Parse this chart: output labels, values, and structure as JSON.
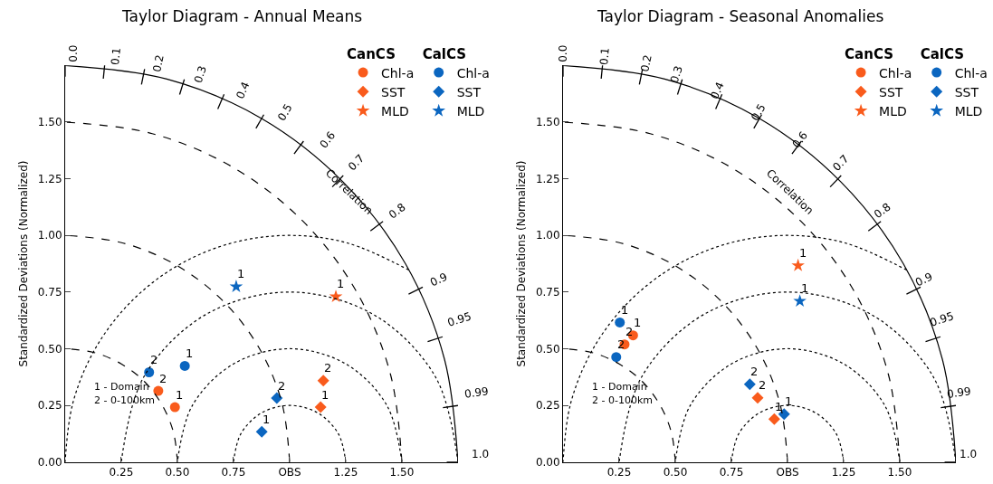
{
  "chart_data": [
    {
      "type": "scatter",
      "title": "Taylor Diagram - Annual Means",
      "ylabel": "Standardized Deviations (Normalized)",
      "legend_title": [
        "CanCS",
        "CalCS"
      ],
      "legend": "top right",
      "xlim": [
        0,
        1.75
      ],
      "ylim": [
        0,
        1.75
      ],
      "xticks": [
        {
          "value": 0.25,
          "label": "0.25"
        },
        {
          "value": 0.5,
          "label": "0.50"
        },
        {
          "value": 0.75,
          "label": "0.75"
        },
        {
          "value": 1.0,
          "label": "OBS"
        },
        {
          "value": 1.25,
          "label": "1.25"
        },
        {
          "value": 1.5,
          "label": "1.50"
        }
      ],
      "yticks": [
        {
          "value": 0,
          "label": "0.00"
        },
        {
          "value": 0.25,
          "label": "0.25"
        },
        {
          "value": 0.5,
          "label": "0.50"
        },
        {
          "value": 0.75,
          "label": "0.75"
        },
        {
          "value": 1.0,
          "label": "1.00"
        },
        {
          "value": 1.25,
          "label": "1.25"
        },
        {
          "value": 1.5,
          "label": "1.50"
        }
      ],
      "series": [
        {
          "name": "Chl-a",
          "color": "#f95b1c",
          "marker": "circle",
          "x": [
            0.489,
            0.415
          ],
          "values": [
            0.242,
            0.314
          ]
        },
        {
          "name": "SST",
          "color": "#f95b1c",
          "marker": "diamond",
          "x": [
            1.138,
            1.15
          ],
          "values": [
            0.242,
            0.359
          ]
        },
        {
          "name": "MLD",
          "color": "#f95b1c",
          "marker": "star",
          "x": [
            1.206
          ],
          "values": [
            0.73
          ]
        },
        {
          "name": "Chl-a",
          "color": "#0b66c0",
          "marker": "circle",
          "x": [
            0.533,
            0.374
          ],
          "values": [
            0.424,
            0.396
          ]
        },
        {
          "name": "SST",
          "color": "#0b66c0",
          "marker": "diamond",
          "x": [
            0.876,
            0.943
          ],
          "values": [
            0.134,
            0.282
          ]
        },
        {
          "name": "MLD",
          "color": "#0b66c0",
          "marker": "star",
          "x": [
            0.762
          ],
          "values": [
            0.774
          ]
        },
        {
          "type": "line",
          "color": "#000000",
          "line_style": "solid",
          "marker": "none",
          "x": [
            1.75,
            1.69,
            1.516,
            1.237,
            0.875,
            0.453,
            0
          ],
          "values": [
            0,
            0.453,
            0.875,
            1.237,
            1.516,
            1.69,
            1.75
          ]
        },
        {
          "type": "line",
          "color": "#000000",
          "line_style": "dashed",
          "marker": "none",
          "x": [
            0.5,
            0.483,
            0.433,
            0.354,
            0.25,
            0.129,
            0
          ],
          "values": [
            0,
            0.129,
            0.25,
            0.354,
            0.433,
            0.483,
            0.5
          ]
        },
        {
          "type": "line",
          "color": "#000000",
          "line_style": "dashed",
          "marker": "none",
          "x": [
            1,
            0.966,
            0.866,
            0.707,
            0.5,
            0.259,
            0
          ],
          "values": [
            0,
            0.259,
            0.5,
            0.707,
            0.866,
            0.966,
            1
          ]
        },
        {
          "type": "line",
          "color": "#000000",
          "line_style": "dashed",
          "marker": "none",
          "x": [
            1.5,
            1.449,
            1.299,
            1.061,
            0.75,
            0.388,
            0
          ],
          "values": [
            0,
            0.388,
            0.75,
            1.061,
            1.299,
            1.449,
            1.5
          ]
        },
        {
          "type": "line",
          "color": "#000000",
          "line_style": "dotted",
          "marker": "none",
          "x": [
            1.25,
            1.217,
            1.125,
            1,
            0.875,
            0.783,
            0.75
          ],
          "values": [
            0,
            0.125,
            0.217,
            0.25,
            0.217,
            0.125,
            0
          ]
        },
        {
          "type": "line",
          "color": "#000000",
          "line_style": "dotted",
          "marker": "none",
          "x": [
            1.5,
            1.433,
            1.25,
            1,
            0.75,
            0.567,
            0.5
          ],
          "values": [
            0,
            0.25,
            0.433,
            0.5,
            0.433,
            0.25,
            0
          ]
        },
        {
          "type": "line",
          "color": "#000000",
          "line_style": "dotted",
          "marker": "none",
          "x": [
            1.75,
            1.65,
            1.375,
            1,
            0.625,
            0.35,
            0.25
          ],
          "values": [
            0,
            0.375,
            0.65,
            0.75,
            0.65,
            0.375,
            0
          ]
        },
        {
          "type": "line",
          "color": "#000000",
          "line_style": "dotted",
          "marker": "none",
          "x": [
            1.531,
            1.259,
            1,
            0.741,
            0.5,
            0.293,
            0.134,
            0.034,
            0
          ],
          "values": [
            0.847,
            0.966,
            1,
            0.966,
            0.866,
            0.707,
            0.5,
            0.259,
            0
          ]
        }
      ],
      "annotations": [
        {
          "text": "1",
          "x": 0.489,
          "y": 0.242
        },
        {
          "text": "2",
          "x": 0.415,
          "y": 0.314
        },
        {
          "text": "1",
          "x": 1.138,
          "y": 0.242
        },
        {
          "text": "2",
          "x": 1.15,
          "y": 0.359
        },
        {
          "text": "1",
          "x": 1.206,
          "y": 0.73
        },
        {
          "text": "1",
          "x": 0.533,
          "y": 0.424
        },
        {
          "text": "2",
          "x": 0.374,
          "y": 0.396
        },
        {
          "text": "1",
          "x": 0.876,
          "y": 0.134
        },
        {
          "text": "2",
          "x": 0.943,
          "y": 0.282
        },
        {
          "text": "1",
          "x": 0.762,
          "y": 0.774
        },
        "0.0",
        "0.1",
        "0.2",
        "0.3",
        "0.4",
        "0.5",
        "0.6",
        "0.7",
        "0.8",
        "0.9",
        "0.95",
        "0.99",
        "1.0",
        "Correlation",
        "1 - Domain",
        "2 - 0-100km"
      ]
    },
    {
      "type": "scatter",
      "title": "Taylor Diagram - Seasonal Anomalies",
      "ylabel": "Standardized Deviations (Normalized)",
      "legend_title": [
        "CanCS",
        "CalCS"
      ],
      "legend": "top right",
      "xlim": [
        0,
        1.75
      ],
      "ylim": [
        0,
        1.75
      ],
      "xticks": [
        {
          "value": 0.25,
          "label": "0.25"
        },
        {
          "value": 0.5,
          "label": "0.50"
        },
        {
          "value": 0.75,
          "label": "0.75"
        },
        {
          "value": 1.0,
          "label": "OBS"
        },
        {
          "value": 1.25,
          "label": "1.25"
        },
        {
          "value": 1.5,
          "label": "1.50"
        }
      ],
      "yticks": [
        {
          "value": 0,
          "label": "0.00"
        },
        {
          "value": 0.25,
          "label": "0.25"
        },
        {
          "value": 0.5,
          "label": "0.50"
        },
        {
          "value": 0.75,
          "label": "0.75"
        },
        {
          "value": 1.0,
          "label": "1.00"
        },
        {
          "value": 1.25,
          "label": "1.25"
        },
        {
          "value": 1.5,
          "label": "1.50"
        }
      ],
      "series": [
        {
          "name": "Chl-a",
          "color": "#f95b1c",
          "marker": "circle",
          "x": [
            0.312,
            0.274
          ],
          "values": [
            0.559,
            0.519
          ]
        },
        {
          "name": "SST",
          "color": "#f95b1c",
          "marker": "diamond",
          "x": [
            0.941,
            0.867
          ],
          "values": [
            0.189,
            0.283
          ]
        },
        {
          "name": "MLD",
          "color": "#f95b1c",
          "marker": "star",
          "x": [
            1.047
          ],
          "values": [
            0.867
          ]
        },
        {
          "name": "Chl-a",
          "color": "#0b66c0",
          "marker": "circle",
          "x": [
            0.253,
            0.237
          ],
          "values": [
            0.616,
            0.463
          ]
        },
        {
          "name": "SST",
          "color": "#0b66c0",
          "marker": "diamond",
          "x": [
            0.985,
            0.832
          ],
          "values": [
            0.211,
            0.343
          ]
        },
        {
          "name": "MLD",
          "color": "#0b66c0",
          "marker": "star",
          "x": [
            1.055
          ],
          "values": [
            0.71
          ]
        },
        {
          "type": "line",
          "color": "#000000",
          "line_style": "solid",
          "marker": "none",
          "x": [
            1.75,
            1.69,
            1.516,
            1.237,
            0.875,
            0.453,
            0
          ],
          "values": [
            0,
            0.453,
            0.875,
            1.237,
            1.516,
            1.69,
            1.75
          ]
        },
        {
          "type": "line",
          "color": "#000000",
          "line_style": "dashed",
          "marker": "none",
          "x": [
            0.5,
            0.483,
            0.433,
            0.354,
            0.25,
            0.129,
            0
          ],
          "values": [
            0,
            0.129,
            0.25,
            0.354,
            0.433,
            0.483,
            0.5
          ]
        },
        {
          "type": "line",
          "color": "#000000",
          "line_style": "dashed",
          "marker": "none",
          "x": [
            1,
            0.966,
            0.866,
            0.707,
            0.5,
            0.259,
            0
          ],
          "values": [
            0,
            0.259,
            0.5,
            0.707,
            0.866,
            0.966,
            1
          ]
        },
        {
          "type": "line",
          "color": "#000000",
          "line_style": "dashed",
          "marker": "none",
          "x": [
            1.5,
            1.449,
            1.299,
            1.061,
            0.75,
            0.388,
            0
          ],
          "values": [
            0,
            0.388,
            0.75,
            1.061,
            1.299,
            1.449,
            1.5
          ]
        },
        {
          "type": "line",
          "color": "#000000",
          "line_style": "dotted",
          "marker": "none",
          "x": [
            1.25,
            1.217,
            1.125,
            1,
            0.875,
            0.783,
            0.75
          ],
          "values": [
            0,
            0.125,
            0.217,
            0.25,
            0.217,
            0.125,
            0
          ]
        },
        {
          "type": "line",
          "color": "#000000",
          "line_style": "dotted",
          "marker": "none",
          "x": [
            1.5,
            1.433,
            1.25,
            1,
            0.75,
            0.567,
            0.5
          ],
          "values": [
            0,
            0.25,
            0.433,
            0.5,
            0.433,
            0.25,
            0
          ]
        },
        {
          "type": "line",
          "color": "#000000",
          "line_style": "dotted",
          "marker": "none",
          "x": [
            1.75,
            1.65,
            1.375,
            1,
            0.625,
            0.35,
            0.25
          ],
          "values": [
            0,
            0.375,
            0.65,
            0.75,
            0.65,
            0.375,
            0
          ]
        },
        {
          "type": "line",
          "color": "#000000",
          "line_style": "dotted",
          "marker": "none",
          "x": [
            1.531,
            1.259,
            1,
            0.741,
            0.5,
            0.293,
            0.134,
            0.034,
            0
          ],
          "values": [
            0.847,
            0.966,
            1,
            0.966,
            0.866,
            0.707,
            0.5,
            0.259,
            0
          ]
        }
      ],
      "annotations": [
        {
          "text": "1",
          "x": 0.312,
          "y": 0.559
        },
        {
          "text": "2",
          "x": 0.274,
          "y": 0.519
        },
        {
          "text": "1",
          "x": 0.941,
          "y": 0.189
        },
        {
          "text": "2",
          "x": 0.867,
          "y": 0.283
        },
        {
          "text": "1",
          "x": 1.047,
          "y": 0.867
        },
        {
          "text": "1",
          "x": 0.253,
          "y": 0.616
        },
        {
          "text": "2",
          "x": 0.237,
          "y": 0.463
        },
        {
          "text": "1",
          "x": 0.985,
          "y": 0.211
        },
        {
          "text": "2",
          "x": 0.832,
          "y": 0.343
        },
        {
          "text": "1",
          "x": 1.055,
          "y": 0.71
        },
        "0.0",
        "0.1",
        "0.2",
        "0.3",
        "0.4",
        "0.5",
        "0.6",
        "0.7",
        "0.8",
        "0.9",
        "0.95",
        "0.99",
        "1.0",
        "Correlation",
        "1 - Domain",
        "2 - 0-100km"
      ]
    }
  ]
}
